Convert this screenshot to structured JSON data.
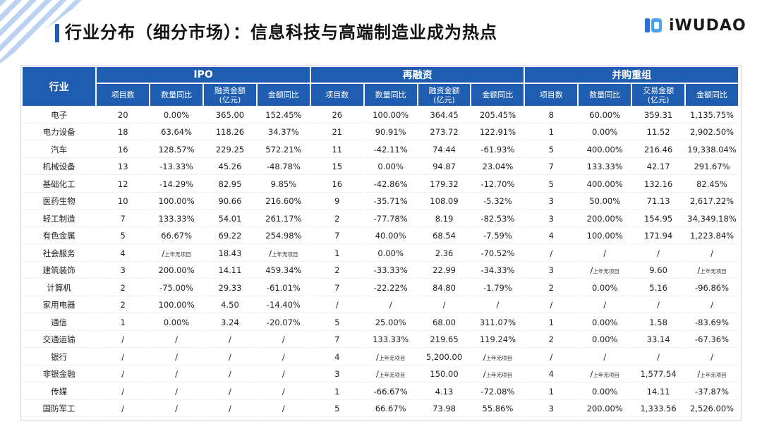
{
  "title": "行业分布（细分市场）：信息科技与高端制造业成为热点",
  "logo_text": "iWUDAO",
  "table": {
    "industry_header": "行业",
    "groups": [
      "IPO",
      "再融资",
      "并购重组"
    ],
    "subheaders": [
      [
        "项目数",
        "数量同比",
        "融资金额\n(亿元)",
        "金额同比"
      ],
      [
        "项目数",
        "数量同比",
        "融资金额\n(亿元)",
        "金额同比"
      ],
      [
        "项目数",
        "数量同比",
        "交易金额\n(亿元)",
        "金额同比"
      ]
    ],
    "rows": [
      [
        "电子",
        "20",
        "0.00%",
        "365.00",
        "152.45%",
        "26",
        "100.00%",
        "364.45",
        "205.45%",
        "8",
        "60.00%",
        "359.31",
        "1,135.75%"
      ],
      [
        "电力设备",
        "18",
        "63.64%",
        "118.26",
        "34.37%",
        "21",
        "90.91%",
        "273.72",
        "122.91%",
        "1",
        "0.00%",
        "11.52",
        "2,902.50%"
      ],
      [
        "汽车",
        "16",
        "128.57%",
        "229.25",
        "572.21%",
        "11",
        "-42.11%",
        "74.44",
        "-61.93%",
        "5",
        "400.00%",
        "216.46",
        "19,338.04%"
      ],
      [
        "机械设备",
        "13",
        "-13.33%",
        "45.26",
        "-48.78%",
        "15",
        "0.00%",
        "94.87",
        "23.04%",
        "7",
        "133.33%",
        "42.17",
        "291.67%"
      ],
      [
        "基础化工",
        "12",
        "-14.29%",
        "82.95",
        "9.85%",
        "16",
        "-42.86%",
        "179.32",
        "-12.70%",
        "5",
        "400.00%",
        "132.16",
        "82.45%"
      ],
      [
        "医药生物",
        "10",
        "100.00%",
        "90.66",
        "216.60%",
        "9",
        "-35.71%",
        "108.09",
        "-5.32%",
        "3",
        "50.00%",
        "71.13",
        "2,617.22%"
      ],
      [
        "轻工制造",
        "7",
        "133.33%",
        "54.01",
        "261.17%",
        "2",
        "-77.78%",
        "8.19",
        "-82.53%",
        "3",
        "200.00%",
        "154.95",
        "34,349.18%"
      ],
      [
        "有色金属",
        "5",
        "66.67%",
        "69.22",
        "254.98%",
        "7",
        "40.00%",
        "68.54",
        "-7.59%",
        "4",
        "100.00%",
        "171.94",
        "1,223.84%"
      ],
      [
        "社会服务",
        "4",
        "/上年无项目",
        "18.43",
        "/上年无项目",
        "1",
        "0.00%",
        "2.36",
        "-70.52%",
        "/",
        "/",
        "/",
        "/"
      ],
      [
        "建筑装饰",
        "3",
        "200.00%",
        "14.11",
        "459.34%",
        "2",
        "-33.33%",
        "22.99",
        "-34.33%",
        "3",
        "/上年无项目",
        "9.60",
        "/上年无项目"
      ],
      [
        "计算机",
        "2",
        "-75.00%",
        "29.33",
        "-61.01%",
        "7",
        "-22.22%",
        "84.80",
        "-1.79%",
        "2",
        "0.00%",
        "5.16",
        "-96.86%"
      ],
      [
        "家用电器",
        "2",
        "100.00%",
        "4.50",
        "-14.40%",
        "/",
        "/",
        "/",
        "/",
        "/",
        "/",
        "/",
        "/"
      ],
      [
        "通信",
        "1",
        "0.00%",
        "3.24",
        "-20.07%",
        "5",
        "25.00%",
        "68.00",
        "311.07%",
        "1",
        "0.00%",
        "1.58",
        "-83.69%"
      ],
      [
        "交通运输",
        "/",
        "/",
        "/",
        "/",
        "7",
        "133.33%",
        "219.65",
        "119.24%",
        "2",
        "0.00%",
        "33.14",
        "-67.36%"
      ],
      [
        "银行",
        "/",
        "/",
        "/",
        "/",
        "4",
        "/上年无项目",
        "5,200.00",
        "/上年无项目",
        "/",
        "/",
        "/",
        "/"
      ],
      [
        "非银金融",
        "/",
        "/",
        "/",
        "/",
        "3",
        "/上年无项目",
        "150.00",
        "/上年无项目",
        "4",
        "/上年无项目",
        "1,577.54",
        "/上年无项目"
      ],
      [
        "传媒",
        "/",
        "/",
        "/",
        "/",
        "1",
        "-66.67%",
        "4.13",
        "-72.08%",
        "1",
        "0.00%",
        "14.11",
        "-37.87%"
      ],
      [
        "国防军工",
        "/",
        "/",
        "/",
        "/",
        "5",
        "66.67%",
        "73.98",
        "55.86%",
        "3",
        "200.00%",
        "1,333.56",
        "2,526.00%"
      ]
    ]
  }
}
